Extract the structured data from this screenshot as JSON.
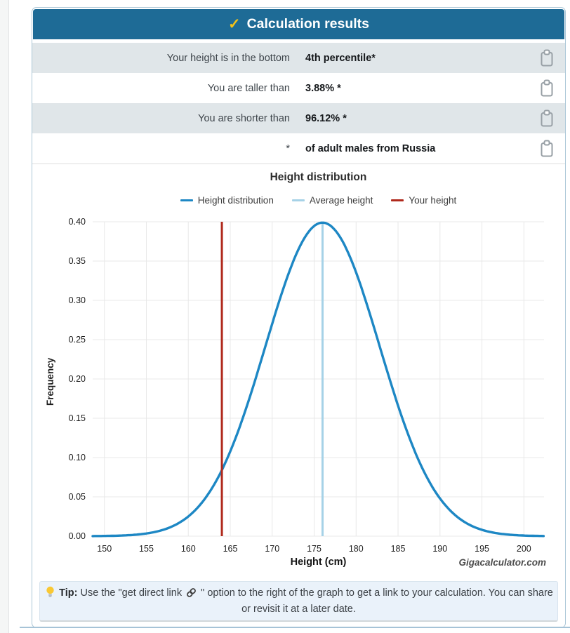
{
  "header": {
    "title": "Calculation results",
    "check_icon": "✓",
    "bg_color": "#1e6b96",
    "check_color": "#f2c21a"
  },
  "results": {
    "rows": [
      {
        "label": "Your height is in the bottom",
        "value": "4th percentile*"
      },
      {
        "label": "You are taller than",
        "value": "3.88% *"
      },
      {
        "label": "You are shorter than",
        "value": "96.12% *"
      },
      {
        "label": "*",
        "value": "of adult males from Russia"
      }
    ],
    "copy_icon": "clipboard",
    "alt_row_color": "#e0e6e9"
  },
  "chart_data": {
    "type": "line",
    "title": "Height distribution",
    "xlabel": "Height (cm)",
    "ylabel": "Frequency",
    "watermark": "Gigacalculator.com",
    "xlim": [
      148.6,
      202.4
    ],
    "ylim": [
      0,
      0.4
    ],
    "x_ticks": [
      150,
      155,
      160,
      165,
      170,
      175,
      180,
      185,
      190,
      195,
      200
    ],
    "y_tick_step": 0.05,
    "grid": true,
    "legend_position": "top",
    "series": [
      {
        "name": "Height distribution",
        "type": "normal-curve",
        "mean": 176,
        "sigma": 6.8,
        "peak": 0.3989,
        "color": "#1d87c4",
        "layer": 1
      },
      {
        "name": "Average height",
        "type": "vline",
        "x": 176,
        "y_top": 0.3989,
        "color": "#a6d2e7",
        "layer": 0
      },
      {
        "name": "Your height",
        "type": "vline",
        "x": 164,
        "y_top": 0.4,
        "color": "#b0291c",
        "layer": 2
      }
    ],
    "grid_color": "#e8e8e8"
  },
  "tip": {
    "label": "Tip:",
    "bulb_icon": "lightbulb",
    "text_before_icon": "Use the \"get direct link",
    "link_icon": "link",
    "text_after_icon": "\" option to the right of the graph to get a link to your calculation. You can share or revisit it at a later date."
  }
}
